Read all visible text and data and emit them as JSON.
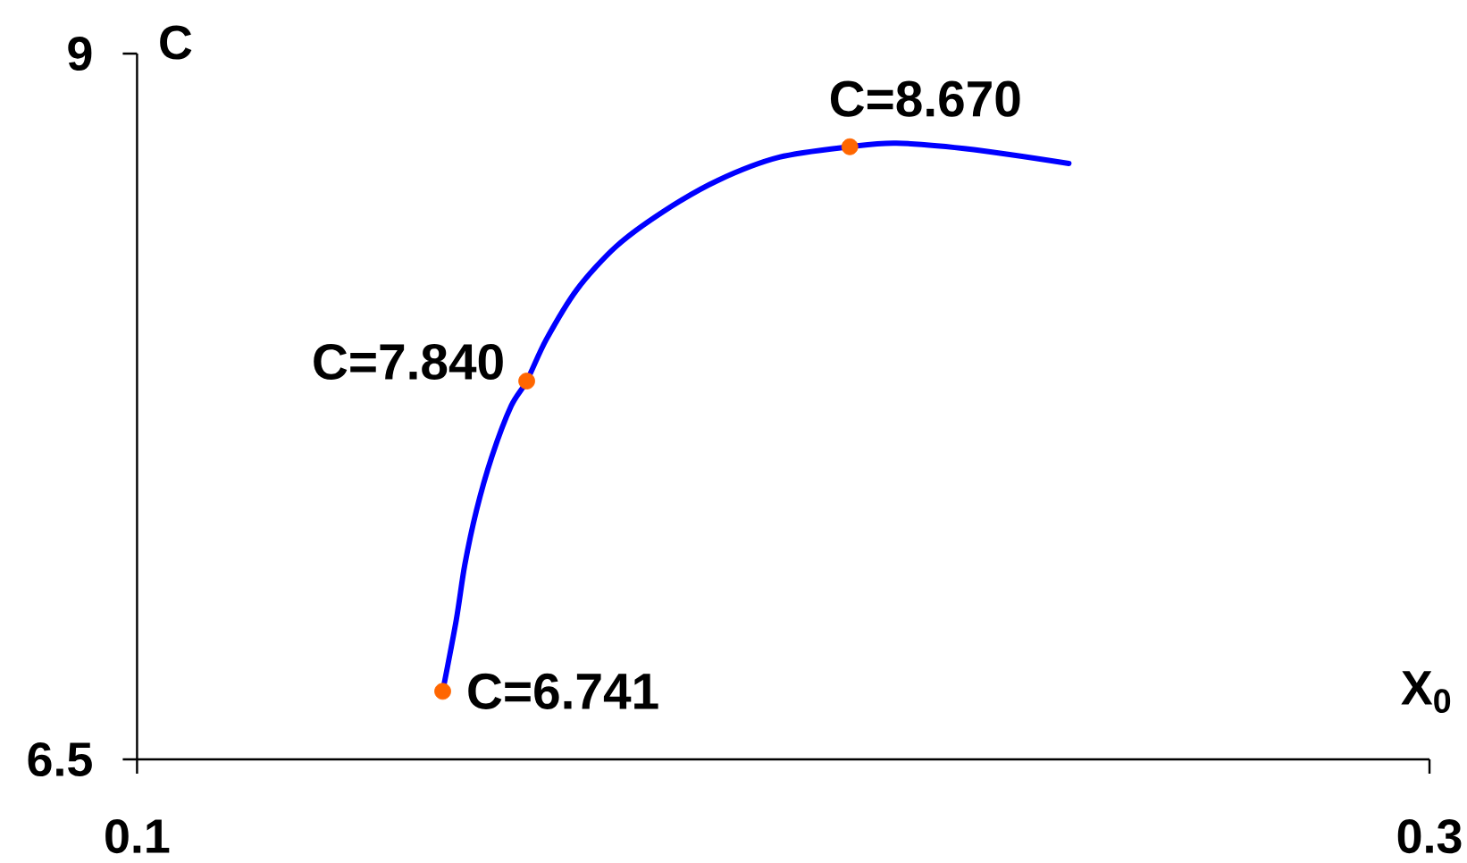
{
  "chart_data": {
    "type": "line",
    "xlabel": "X$_{0}$",
    "ylabel": "C",
    "xlim": [
      0.1,
      0.3
    ],
    "ylim": [
      6.5,
      9
    ],
    "xticks": [
      0.1,
      0.3
    ],
    "yticks": [
      6.5,
      9
    ],
    "series": [
      {
        "color": "#0000ff",
        "marker": "none",
        "line_style": "solid",
        "x": [
          0.1473,
          0.1494,
          0.1507,
          0.1525,
          0.1549,
          0.1579,
          0.1603,
          0.1633,
          0.1681,
          0.1741,
          0.1814,
          0.1898,
          0.1994,
          0.2103,
          0.2175,
          0.2295,
          0.2442
        ],
        "values": [
          6.741,
          6.994,
          7.187,
          7.38,
          7.572,
          7.752,
          7.84,
          7.986,
          8.165,
          8.316,
          8.44,
          8.55,
          8.633,
          8.67,
          8.683,
          8.66,
          8.611
        ]
      },
      {
        "type": "scatter",
        "color": "#ff6600",
        "marker": "circle",
        "x": [
          0.1473,
          0.1603,
          0.2103
        ],
        "values": [
          6.741,
          7.84,
          8.67
        ],
        "value_labels": [
          "C=6.741",
          "C=7.840",
          "C=8.670"
        ]
      }
    ]
  }
}
